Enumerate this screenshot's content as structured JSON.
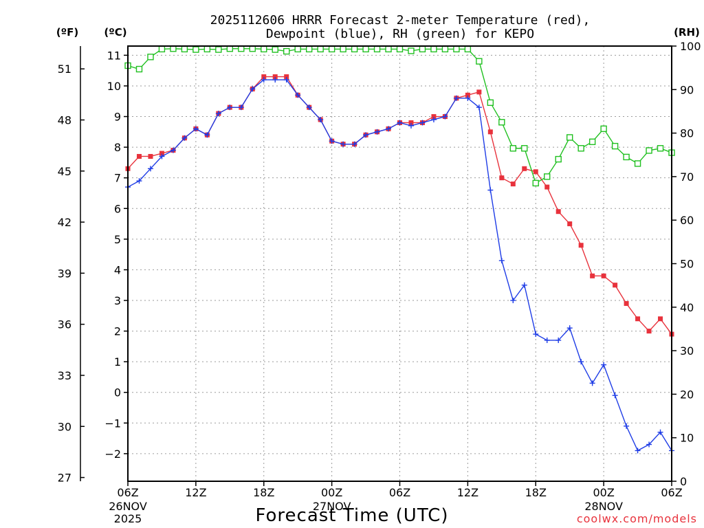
{
  "chart_data": {
    "type": "line",
    "title": "2025112606 HRRR Forecast 2-meter Temperature (red),",
    "subtitle": "Dewpoint (blue), RH (green) for KEPO",
    "xlabel": "Forecast Time (UTC)",
    "left_unit_f": "(ºF)",
    "left_unit_c": "(ºC)",
    "right_unit": "(RH)",
    "credit": "coolwx.com/models",
    "x_range_hours": [
      0,
      48
    ],
    "ylim_c": [
      -2.9,
      11.3
    ],
    "ylim_rh": [
      0,
      100
    ],
    "grid": true,
    "x_ticks": [
      {
        "hour": 0,
        "label": "06Z"
      },
      {
        "hour": 6,
        "label": "12Z"
      },
      {
        "hour": 12,
        "label": "18Z"
      },
      {
        "hour": 18,
        "label": "00Z"
      },
      {
        "hour": 24,
        "label": "06Z"
      },
      {
        "hour": 30,
        "label": "12Z"
      },
      {
        "hour": 36,
        "label": "18Z"
      },
      {
        "hour": 42,
        "label": "00Z"
      },
      {
        "hour": 48,
        "label": "06Z"
      }
    ],
    "date_labels": [
      {
        "hour": 0,
        "lines": [
          "26NOV",
          "2025"
        ]
      },
      {
        "hour": 18,
        "lines": [
          "27NOV"
        ]
      },
      {
        "hour": 42,
        "lines": [
          "28NOV"
        ]
      }
    ],
    "y_ticks_c": [
      11,
      10,
      9,
      8,
      7,
      6,
      5,
      4,
      3,
      2,
      1,
      0,
      -1,
      -2
    ],
    "y_ticks_f": [
      51,
      48,
      45,
      42,
      39,
      36,
      33,
      30,
      27
    ],
    "y_ticks_rh": [
      100,
      90,
      80,
      70,
      60,
      50,
      40,
      30,
      20,
      10,
      0
    ],
    "series": [
      {
        "name": "2-meter Temperature",
        "axis": "c",
        "color": "#e8323c",
        "marker": "square",
        "values": [
          7.3,
          7.7,
          7.7,
          7.8,
          7.9,
          8.3,
          8.6,
          8.4,
          9.1,
          9.3,
          9.3,
          9.9,
          10.3,
          10.3,
          10.3,
          9.7,
          9.3,
          8.9,
          8.2,
          8.1,
          8.1,
          8.4,
          8.5,
          8.6,
          8.8,
          8.8,
          8.8,
          9.0,
          9.0,
          9.6,
          9.7,
          9.8,
          8.5,
          7.0,
          6.8,
          7.3,
          7.2,
          6.7,
          5.9,
          5.5,
          4.8,
          3.8,
          3.8,
          3.5,
          2.9,
          2.4,
          2.0,
          2.4,
          1.9
        ]
      },
      {
        "name": "Dewpoint",
        "axis": "c",
        "color": "#1e3ce6",
        "marker": "plus",
        "values": [
          6.7,
          6.9,
          7.3,
          7.7,
          7.9,
          8.3,
          8.6,
          8.4,
          9.1,
          9.3,
          9.3,
          9.9,
          10.2,
          10.2,
          10.2,
          9.7,
          9.3,
          8.9,
          8.2,
          8.1,
          8.1,
          8.4,
          8.5,
          8.6,
          8.8,
          8.7,
          8.8,
          8.9,
          9.0,
          9.6,
          9.6,
          9.3,
          6.6,
          4.3,
          3.0,
          3.5,
          1.9,
          1.7,
          1.7,
          2.1,
          1.0,
          0.3,
          0.9,
          -0.1,
          -1.1,
          -1.9,
          -1.7,
          -1.3,
          -1.9
        ]
      },
      {
        "name": "RH",
        "axis": "rh",
        "color": "#20c020",
        "marker": "open-square",
        "values": [
          95.5,
          94.7,
          97.5,
          99.3,
          99.4,
          99.3,
          99.2,
          99.3,
          99.2,
          99.4,
          99.4,
          99.4,
          99.3,
          99.2,
          98.8,
          99.3,
          99.3,
          99.3,
          99.3,
          99.3,
          99.3,
          99.3,
          99.3,
          99.3,
          99.3,
          98.9,
          99.3,
          99.3,
          99.3,
          99.3,
          99.3,
          96.5,
          87.0,
          82.5,
          76.5,
          76.5,
          68.5,
          70.0,
          74.0,
          79.0,
          76.5,
          78.0,
          81.0,
          77.0,
          74.5,
          73.0,
          76.0,
          76.5,
          75.5
        ]
      }
    ]
  }
}
